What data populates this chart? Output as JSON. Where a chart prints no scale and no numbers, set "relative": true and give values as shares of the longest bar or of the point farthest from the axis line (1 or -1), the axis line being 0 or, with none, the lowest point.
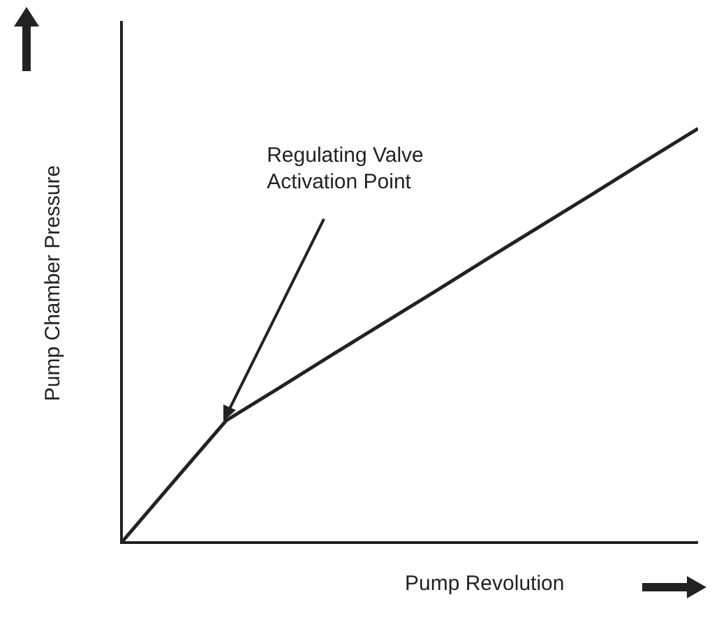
{
  "chart_data": {
    "type": "line",
    "relative": true,
    "xlabel": "Pump Revolution",
    "ylabel": "Pump Chamber Pressure",
    "categories": [
      null,
      null,
      null,
      null,
      null,
      null,
      null,
      null,
      null,
      null,
      null,
      null
    ],
    "marker": "none",
    "line_style": "solid",
    "series": [
      {
        "color": "#222222",
        "values": [
          0,
          0.148,
          0.295,
          0.373,
          0.452,
          0.53,
          0.608,
          0.687,
          0.765,
          0.843,
          0.922,
          1
        ]
      }
    ],
    "annotations": [
      "Regulating Valve Activation Point"
    ]
  }
}
